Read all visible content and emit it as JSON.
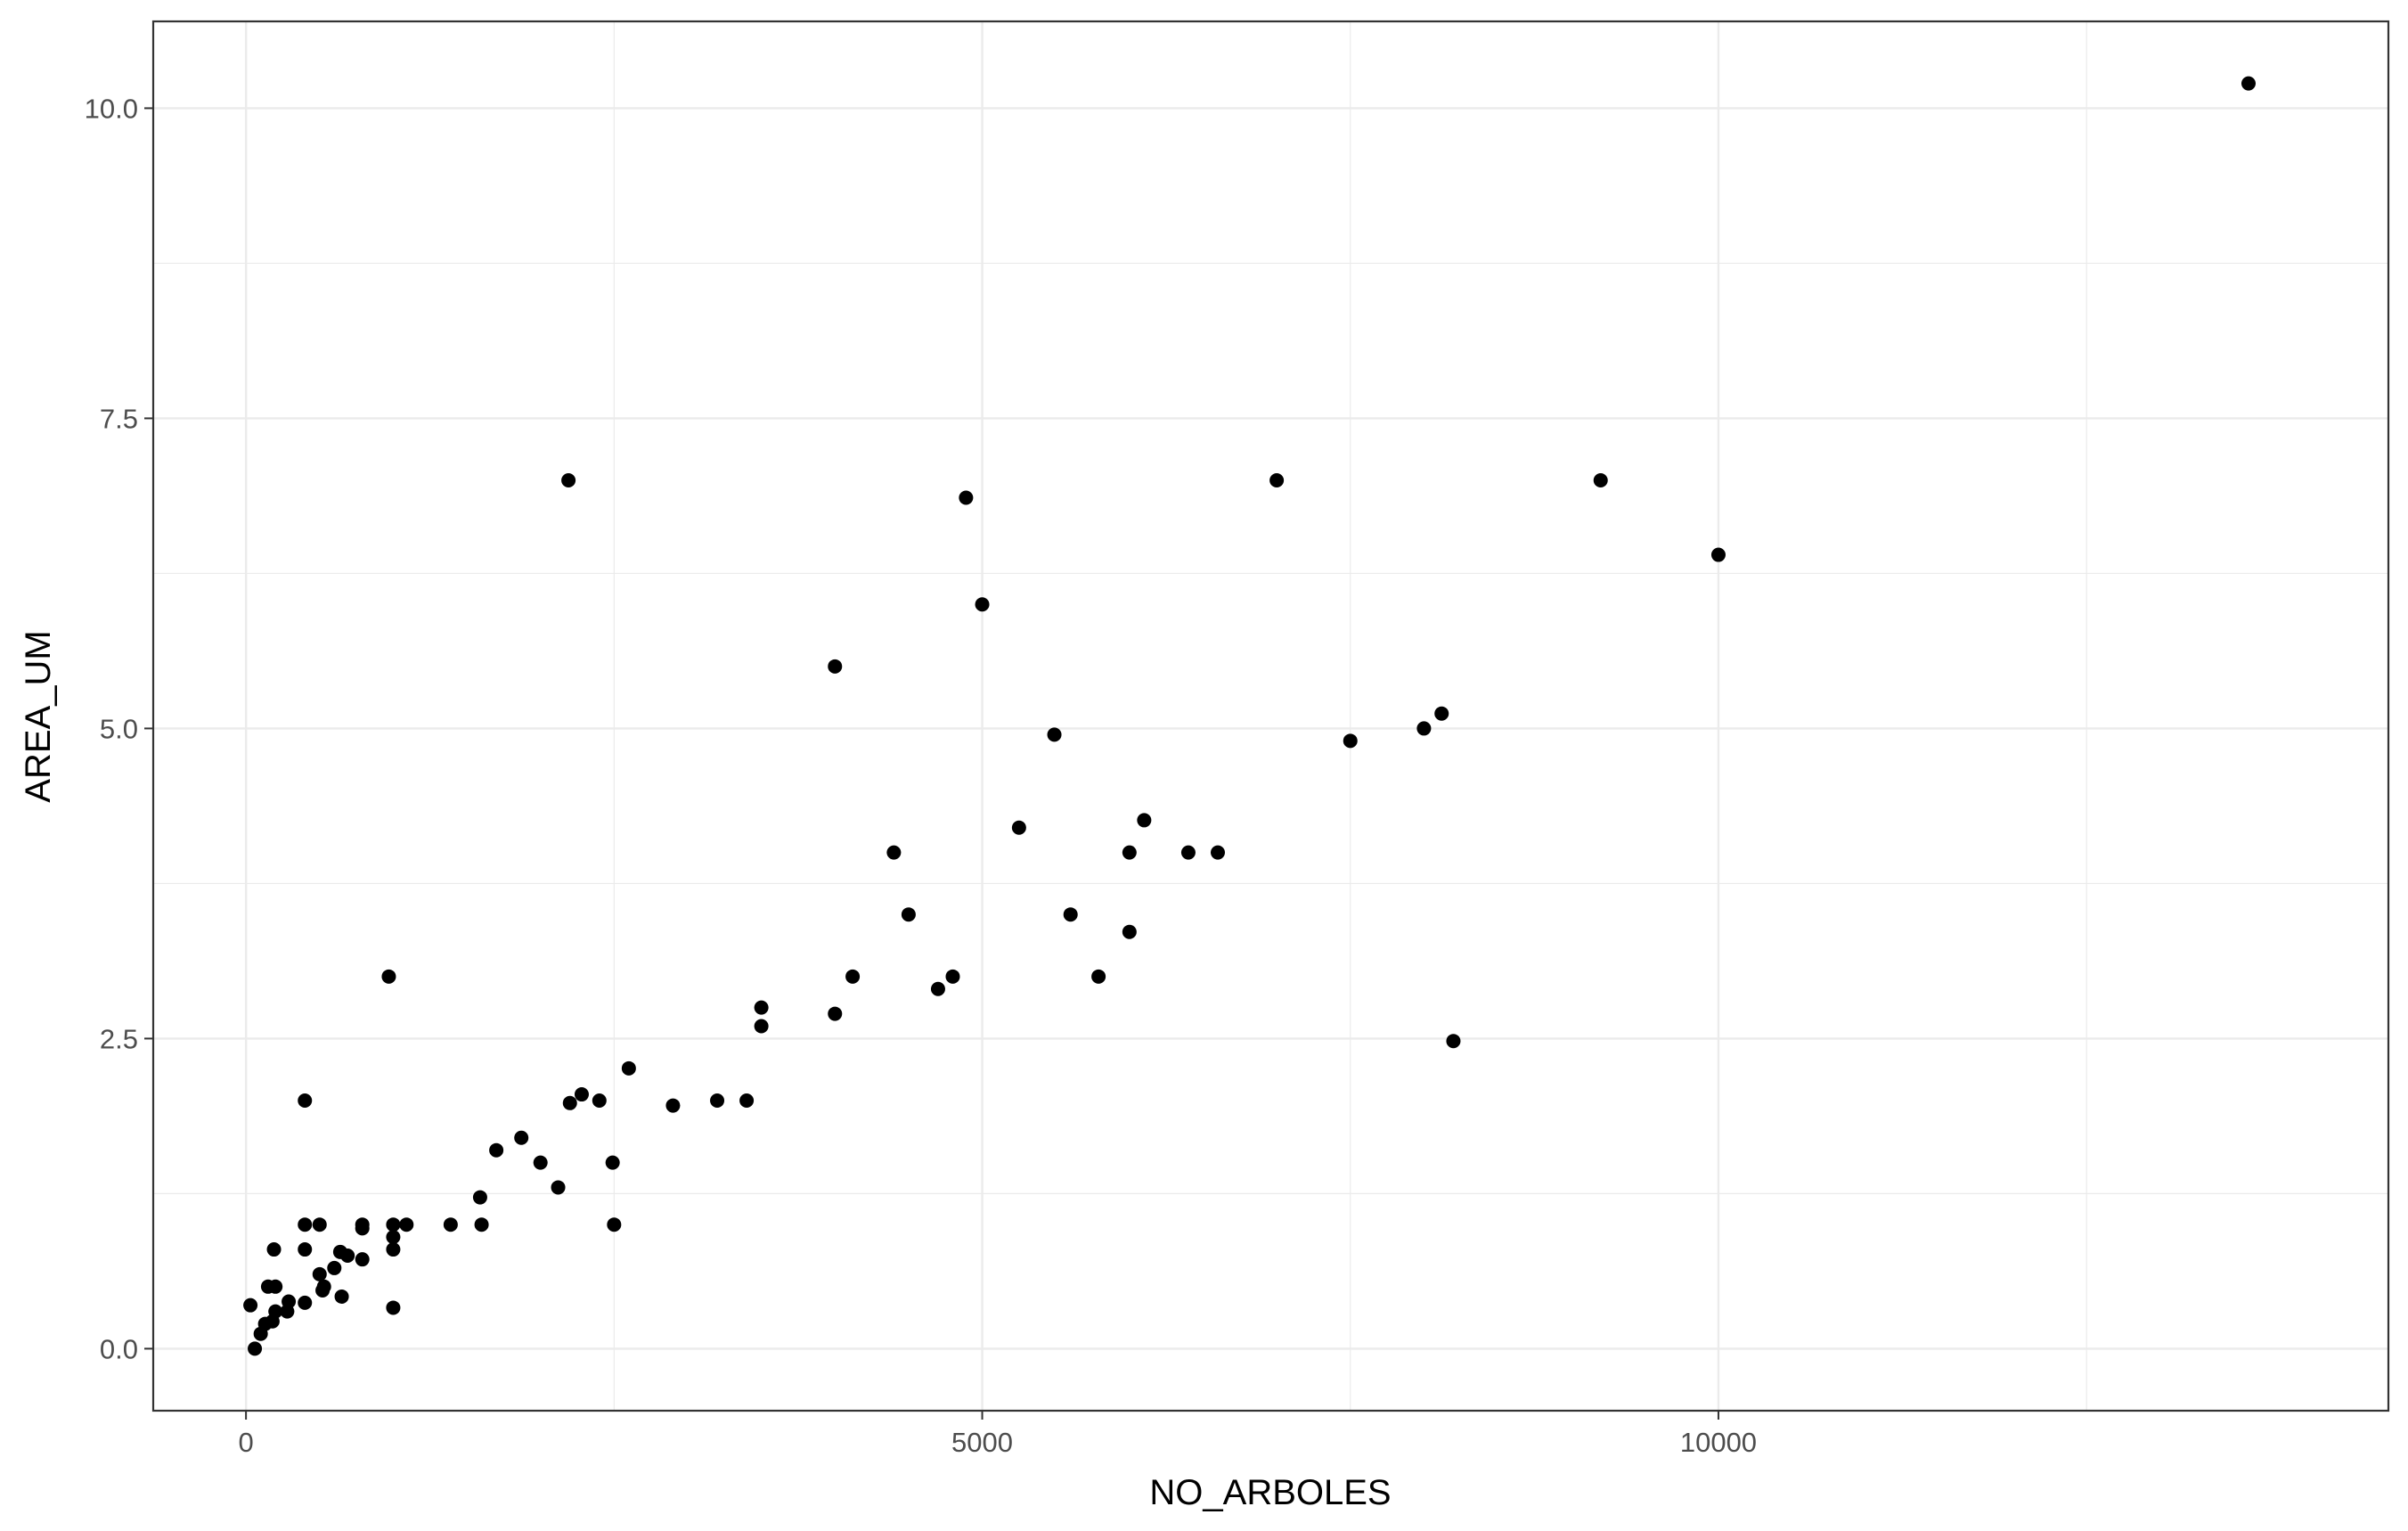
{
  "chart_data": {
    "type": "scatter",
    "title": "",
    "xlabel": "NO_ARBOLES",
    "ylabel": "AREA_UM",
    "xlim": [
      -630,
      14550
    ],
    "ylim": [
      -0.5,
      10.7
    ],
    "x_ticks": [
      0,
      5000,
      10000
    ],
    "x_tick_labels": [
      "0",
      "5000",
      "10000"
    ],
    "x_minor_ticks": [
      2500,
      7500,
      12500
    ],
    "y_ticks": [
      0.0,
      2.5,
      5.0,
      7.5,
      10.0
    ],
    "y_tick_labels": [
      "0.0",
      "2.5",
      "5.0",
      "7.5",
      "10.0"
    ],
    "y_minor_ticks": [
      1.25,
      3.75,
      6.25,
      8.75
    ],
    "grid": true,
    "theme": "bw",
    "point_color": "#000000",
    "gridline_color": "#ebebeb",
    "panel_border_color": "#333333",
    "series": [
      {
        "points": [
          [
            30,
            0.35
          ],
          [
            60,
            0.0
          ],
          [
            100,
            0.12
          ],
          [
            130,
            0.2
          ],
          [
            150,
            0.5
          ],
          [
            180,
            0.22
          ],
          [
            190,
            0.8
          ],
          [
            200,
            0.5
          ],
          [
            200,
            0.3
          ],
          [
            280,
            0.3
          ],
          [
            290,
            0.38
          ],
          [
            400,
            2.0
          ],
          [
            400,
            1.0
          ],
          [
            400,
            0.8
          ],
          [
            400,
            0.37
          ],
          [
            500,
            1.0
          ],
          [
            500,
            0.6
          ],
          [
            520,
            0.47
          ],
          [
            530,
            0.5
          ],
          [
            600,
            0.65
          ],
          [
            640,
            0.78
          ],
          [
            650,
            0.42
          ],
          [
            690,
            0.75
          ],
          [
            790,
            1.0
          ],
          [
            790,
            0.97
          ],
          [
            790,
            0.72
          ],
          [
            970,
            3.0
          ],
          [
            1000,
            1.0
          ],
          [
            1000,
            0.9
          ],
          [
            1000,
            0.8
          ],
          [
            1000,
            0.33
          ],
          [
            1090,
            1.0
          ],
          [
            1390,
            1.0
          ],
          [
            1590,
            1.22
          ],
          [
            1600,
            1.0
          ],
          [
            1700,
            1.6
          ],
          [
            1870,
            1.7
          ],
          [
            2000,
            1.5
          ],
          [
            2120,
            1.3
          ],
          [
            2190,
            7.0
          ],
          [
            2200,
            1.98
          ],
          [
            2280,
            2.05
          ],
          [
            2400,
            2.0
          ],
          [
            2490,
            1.5
          ],
          [
            2500,
            1.0
          ],
          [
            2600,
            2.26
          ],
          [
            2900,
            1.96
          ],
          [
            3200,
            2.0
          ],
          [
            3400,
            2.0
          ],
          [
            3500,
            2.75
          ],
          [
            3500,
            2.6
          ],
          [
            4000,
            5.5
          ],
          [
            4000,
            2.7
          ],
          [
            4120,
            3.0
          ],
          [
            4400,
            4.0
          ],
          [
            4500,
            3.5
          ],
          [
            4700,
            2.9
          ],
          [
            4800,
            3.0
          ],
          [
            4890,
            6.86
          ],
          [
            5000,
            6.0
          ],
          [
            5250,
            4.2
          ],
          [
            5490,
            4.95
          ],
          [
            5600,
            3.5
          ],
          [
            5790,
            3.0
          ],
          [
            6000,
            4.0
          ],
          [
            6000,
            3.36
          ],
          [
            6100,
            4.26
          ],
          [
            6400,
            4.0
          ],
          [
            6600,
            4.0
          ],
          [
            7000,
            7.0
          ],
          [
            7500,
            4.9
          ],
          [
            8000,
            5.0
          ],
          [
            8120,
            5.12
          ],
          [
            8200,
            2.48
          ],
          [
            9200,
            7.0
          ],
          [
            10000,
            6.4
          ],
          [
            13600,
            10.2
          ]
        ]
      }
    ]
  }
}
